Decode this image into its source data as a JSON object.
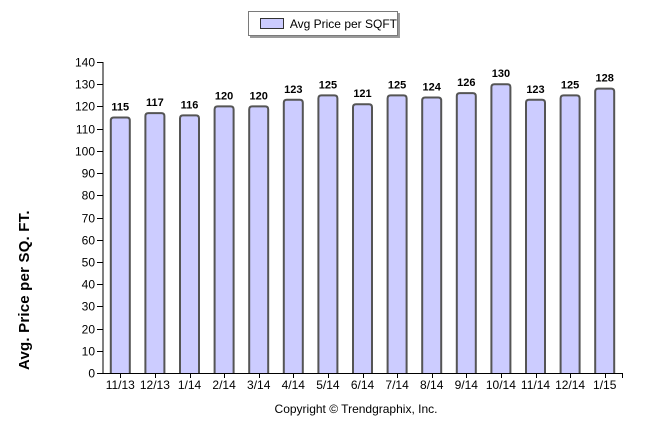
{
  "chart_data": {
    "type": "bar",
    "title": "",
    "xlabel": "",
    "ylabel": "Avg. Price per SQ. FT.",
    "ylim": [
      0,
      140
    ],
    "yticks": [
      0,
      10,
      20,
      30,
      40,
      50,
      60,
      70,
      80,
      90,
      100,
      110,
      120,
      130,
      140
    ],
    "grid": false,
    "legend_position": "top-center",
    "categories": [
      "11/13",
      "12/13",
      "1/14",
      "2/14",
      "3/14",
      "4/14",
      "5/14",
      "6/14",
      "7/14",
      "8/14",
      "9/14",
      "10/14",
      "11/14",
      "12/14",
      "1/15"
    ],
    "series": [
      {
        "name": "Avg Price per SQFT",
        "color": "#ccccff",
        "values": [
          115,
          117,
          116,
          120,
          120,
          123,
          125,
          121,
          125,
          124,
          126,
          130,
          123,
          125,
          128
        ]
      }
    ],
    "data_labels": true,
    "annotations": [
      "Copyright © Trendgraphix, Inc."
    ]
  },
  "legend": {
    "label": "Avg Price per SQFT",
    "swatch_color": "#ccccff"
  },
  "axis": {
    "ylabel": "Avg. Price per SQ. FT."
  },
  "footer": {
    "copyright": "Copyright © Trendgraphix, Inc."
  }
}
